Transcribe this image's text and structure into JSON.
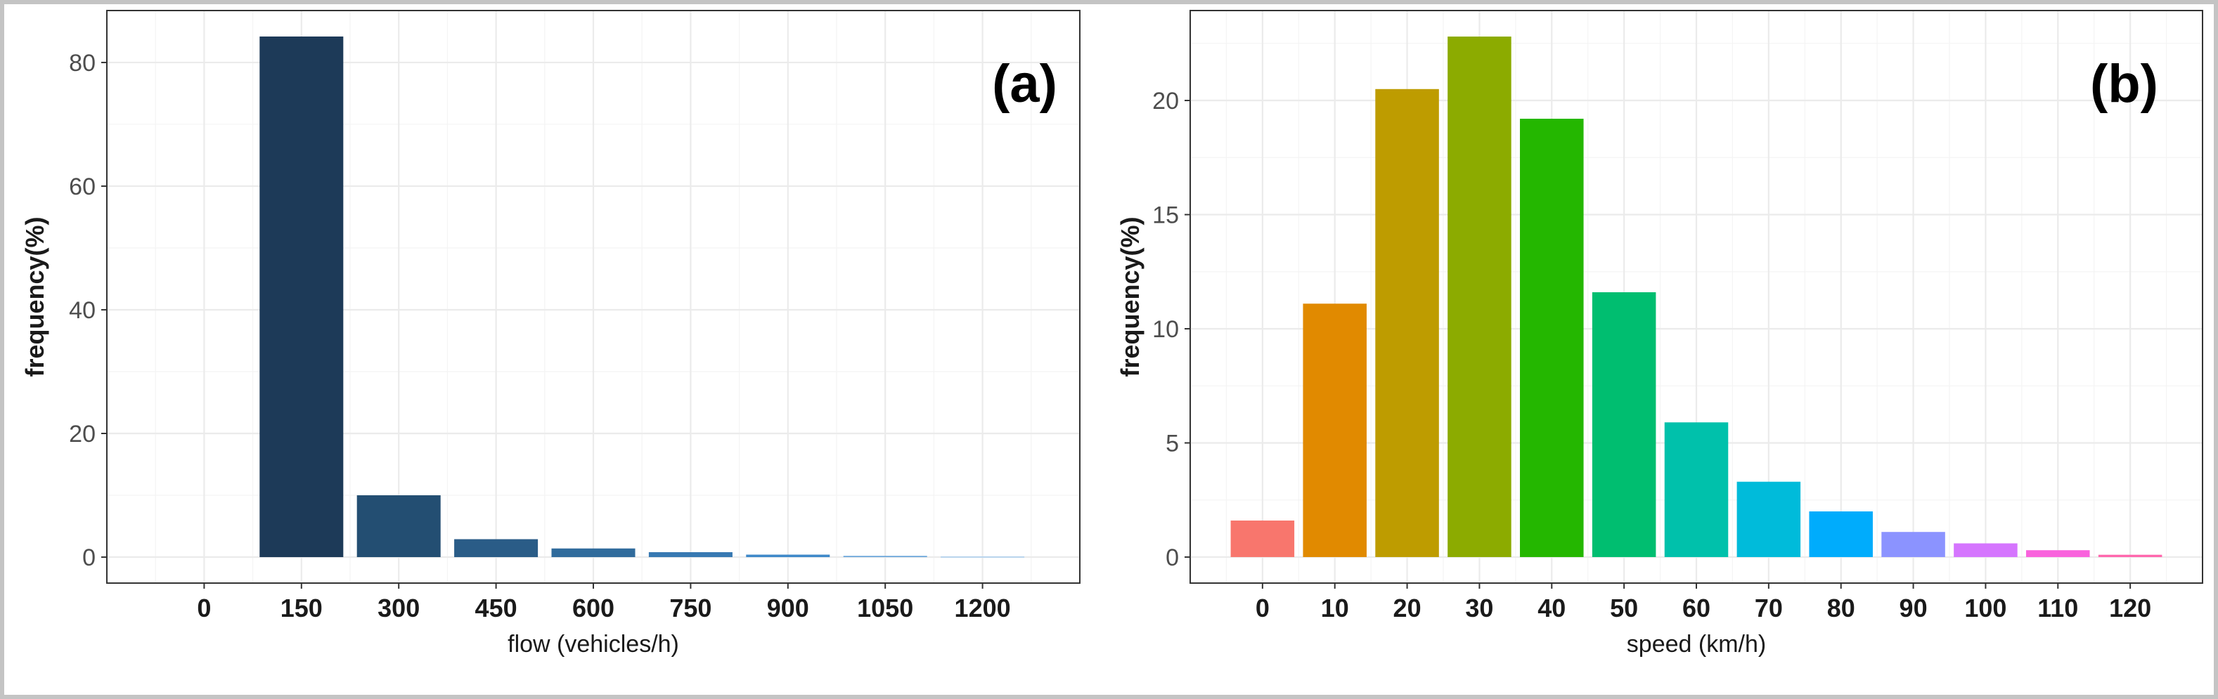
{
  "figure": {
    "frame_color": "#c4c4c4"
  },
  "chart_data": [
    {
      "type": "bar",
      "panel_label": "(a)",
      "xlabel": "flow (vehicles/h)",
      "ylabel": "frequency(%)",
      "categories": [
        "0",
        "150",
        "300",
        "450",
        "600",
        "750",
        "900",
        "1050",
        "1200"
      ],
      "values": [
        0,
        84.2,
        10.0,
        2.9,
        1.4,
        0.8,
        0.4,
        0.2,
        0.1
      ],
      "y_ticks": [
        0,
        20,
        40,
        60,
        80
      ],
      "ylim": [
        -4.2,
        88.4
      ],
      "grid": true,
      "colors": [
        "#1d3a58",
        "#1d3a58",
        "#234e72",
        "#2a5c87",
        "#306b9c",
        "#3779b2",
        "#3f89c9",
        "#6aa6da",
        "#a9cdee"
      ]
    },
    {
      "type": "bar",
      "panel_label": "(b)",
      "xlabel": "speed (km/h)",
      "ylabel": "frequency(%)",
      "categories": [
        "0",
        "10",
        "20",
        "30",
        "40",
        "50",
        "60",
        "70",
        "80",
        "90",
        "100",
        "110",
        "120"
      ],
      "values": [
        1.6,
        11.1,
        20.5,
        22.8,
        19.2,
        11.6,
        5.9,
        3.3,
        2.0,
        1.1,
        0.6,
        0.3,
        0.1
      ],
      "y_ticks": [
        0,
        5,
        10,
        15,
        20
      ],
      "ylim": [
        -1.14,
        23.94
      ],
      "grid": true,
      "colors": [
        "#f8766d",
        "#e18a00",
        "#be9c00",
        "#8cab00",
        "#24b700",
        "#00be70",
        "#00c1ab",
        "#00bbda",
        "#00acfc",
        "#8b93ff",
        "#d575fe",
        "#f962dd",
        "#ff65ac"
      ]
    }
  ]
}
